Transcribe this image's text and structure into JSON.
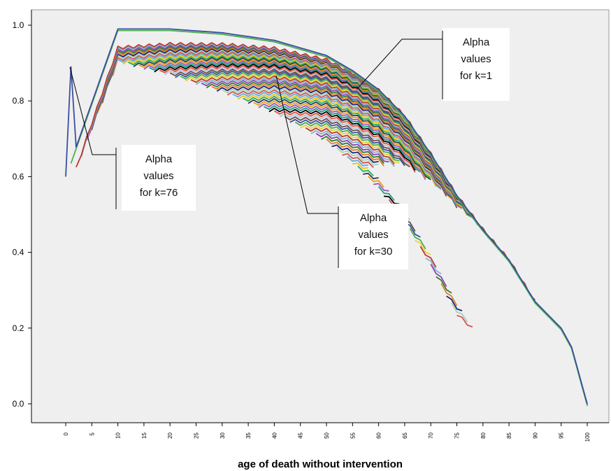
{
  "chart_data": {
    "type": "line",
    "title": "",
    "xlabel": "age of death without intervention",
    "ylabel": "",
    "xlim": [
      0,
      100
    ],
    "ylim": [
      0.0,
      1.0
    ],
    "x_ticks": [
      0,
      5,
      10,
      15,
      20,
      25,
      30,
      35,
      40,
      45,
      50,
      55,
      60,
      65,
      70,
      75,
      80,
      85,
      90,
      95,
      100
    ],
    "y_ticks": [
      0.0,
      0.2,
      0.4,
      0.6,
      0.8,
      1.0
    ],
    "y_tick_labels": [
      "0.0",
      "0.2",
      "0.4",
      "0.6",
      "0.8",
      "1.0"
    ],
    "grid": false,
    "legend": "none",
    "series_description": {
      "count": 76,
      "pattern": "series k starts at age (k-1) and continues to age 100",
      "k1": {
        "x": [
          0,
          10,
          20,
          30,
          40,
          50,
          55,
          60,
          65,
          70,
          75,
          80,
          85,
          90,
          95,
          97,
          100
        ],
        "y": [
          0.6,
          0.99,
          0.99,
          0.98,
          0.96,
          0.92,
          0.88,
          0.83,
          0.76,
          0.66,
          0.55,
          0.46,
          0.38,
          0.27,
          0.2,
          0.15,
          0.0
        ]
      },
      "k30_start": [
        29,
        0.93
      ],
      "k76_start": [
        75,
        0.89
      ]
    },
    "palette": [
      "#3a4fa0",
      "#4caf50",
      "#e8d23a",
      "#c0392b",
      "#7fb3d5",
      "#8e44ad",
      "#2e7d32",
      "#e67e22",
      "#1a237e",
      "#a7d3b0",
      "#d35454",
      "#5dade2",
      "#f1c40f",
      "#27ae60",
      "#2c3e50",
      "#f39c12",
      "#9b59b6",
      "#16a085",
      "#000000",
      "#e74c3c",
      "#b0c4de",
      "#6d4c41"
    ],
    "annotations": [
      {
        "lines": [
          "Alpha",
          "values",
          "for k=1"
        ]
      },
      {
        "lines": [
          "Alpha",
          "values",
          "for k=76"
        ]
      },
      {
        "lines": [
          "Alpha",
          "values",
          "for k=30"
        ]
      }
    ]
  },
  "colors": {
    "plot_background": "#efefef",
    "page_background": "#ffffff",
    "axis": "#000000"
  }
}
